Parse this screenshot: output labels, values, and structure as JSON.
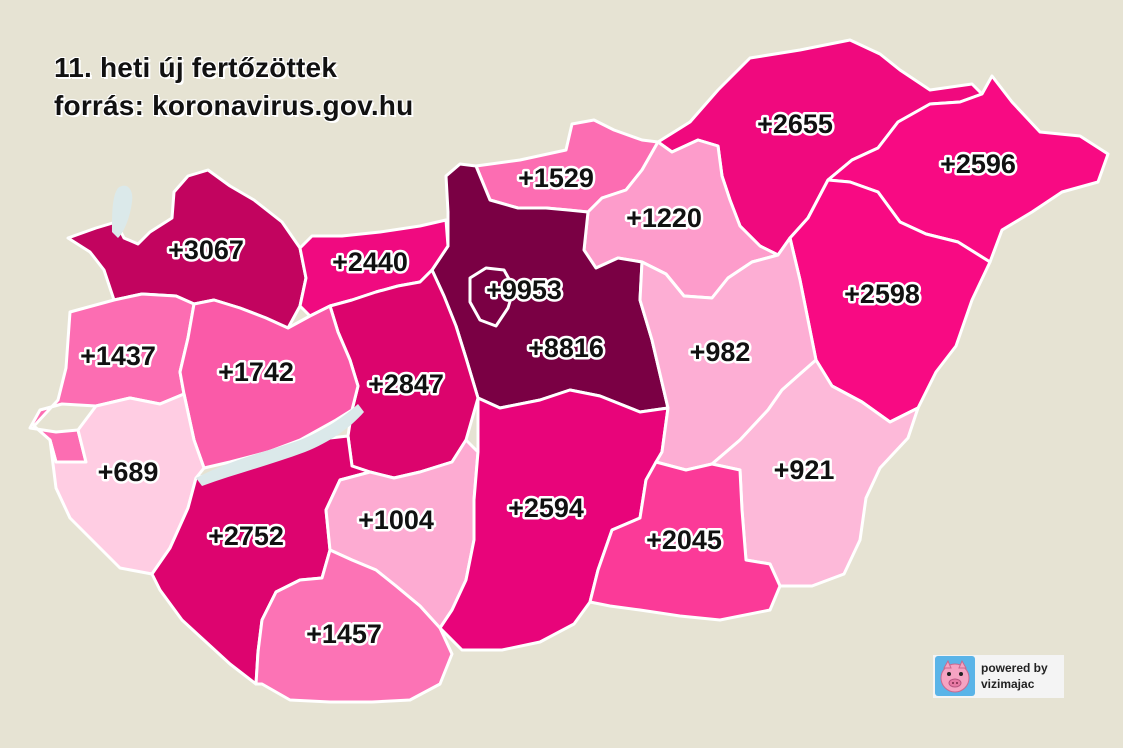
{
  "title": {
    "line1": "11. heti új fertőzöttek",
    "line2": "forrás: koronavirus.gov.hu"
  },
  "colors": {
    "background": "#e6e3d3",
    "lake": "#dbe9ea",
    "border": "#ffffff"
  },
  "counties": [
    {
      "id": "borsod",
      "label": "+2655",
      "value": 2655,
      "color": "#f0097e"
    },
    {
      "id": "szabolcs",
      "label": "+2596",
      "value": 2596,
      "color": "#f80a83"
    },
    {
      "id": "hajdu",
      "label": "+2598",
      "value": 2598,
      "color": "#f80a83"
    },
    {
      "id": "nograd",
      "label": "+1529",
      "value": 1529,
      "color": "#fc6db2"
    },
    {
      "id": "heves",
      "label": "+1220",
      "value": 1220,
      "color": "#fd9ccb"
    },
    {
      "id": "pest",
      "label": "+8816",
      "value": 8816,
      "color": "#7a0044"
    },
    {
      "id": "budapest",
      "label": "+9953",
      "value": 9953,
      "color": "#7a0044"
    },
    {
      "id": "gyor",
      "label": "+3067",
      "value": 3067,
      "color": "#c2045f"
    },
    {
      "id": "komarom",
      "label": "+2440",
      "value": 2440,
      "color": "#f00a80"
    },
    {
      "id": "fejer",
      "label": "+2847",
      "value": 2847,
      "color": "#dc046d"
    },
    {
      "id": "vas",
      "label": "+1437",
      "value": 1437,
      "color": "#fc6db2"
    },
    {
      "id": "veszprem",
      "label": "+1742",
      "value": 1742,
      "color": "#fa5aa8"
    },
    {
      "id": "zala",
      "label": "+689",
      "value": 689,
      "color": "#ffcde3"
    },
    {
      "id": "somogy",
      "label": "+2752",
      "value": 2752,
      "color": "#dd046f"
    },
    {
      "id": "tolna",
      "label": "+1004",
      "value": 1004,
      "color": "#fdabd2"
    },
    {
      "id": "baranya",
      "label": "+1457",
      "value": 1457,
      "color": "#fc73b5"
    },
    {
      "id": "bacs",
      "label": "+2594",
      "value": 2594,
      "color": "#e8047a"
    },
    {
      "id": "szolnok",
      "label": "+982",
      "value": 982,
      "color": "#fdaed4"
    },
    {
      "id": "bekes",
      "label": "+921",
      "value": 921,
      "color": "#fdb9d9"
    },
    {
      "id": "csongrad",
      "label": "+2045",
      "value": 2045,
      "color": "#fb3a98"
    }
  ],
  "badge": {
    "line1": "powered by",
    "line2": "vizimajac",
    "icon": "pig-icon"
  }
}
